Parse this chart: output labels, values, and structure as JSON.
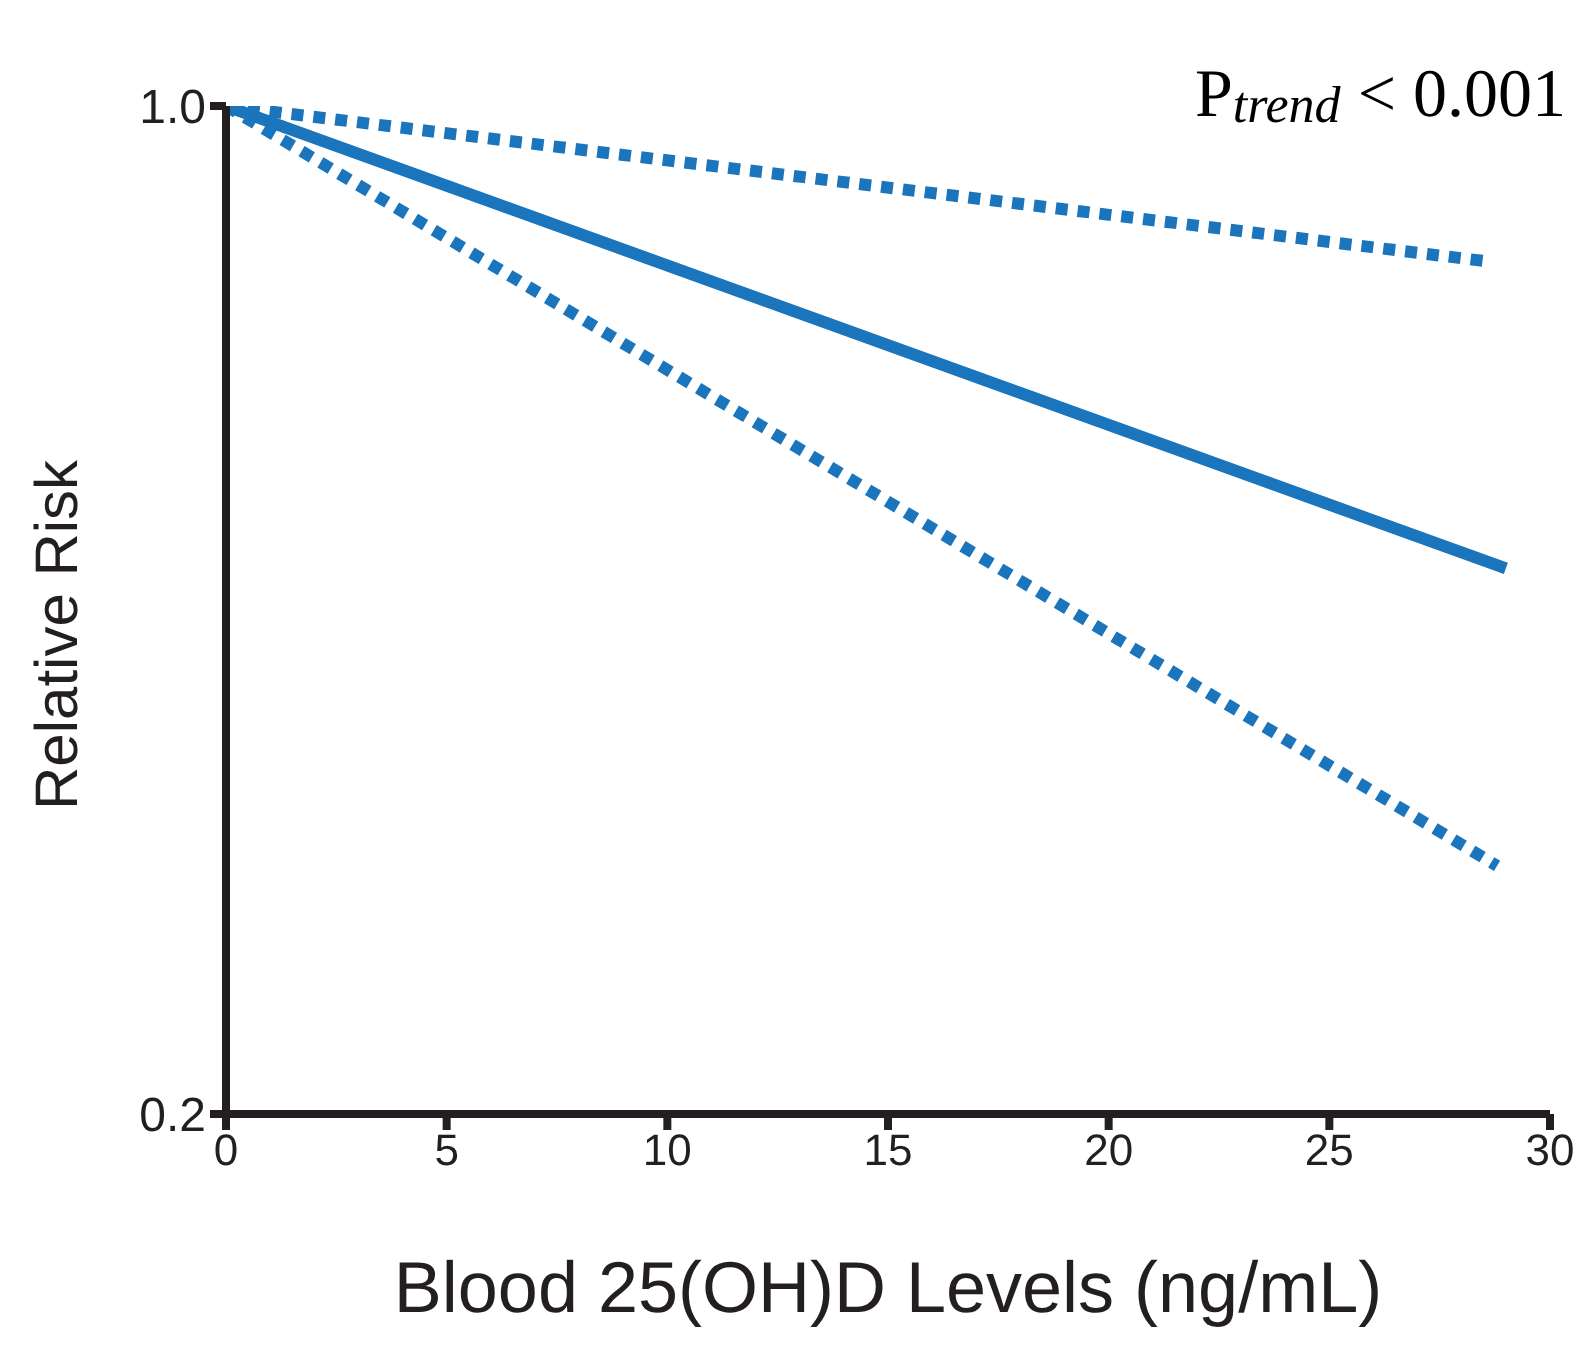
{
  "chart_data": {
    "type": "line",
    "xlabel": "Blood 25(OH)D Levels (ng/mL)",
    "ylabel": "Relative Risk",
    "annotations": [
      "P$_{trend}$ < 0.001"
    ],
    "series": [
      {
        "color": "#1a75bc",
        "x": [
          0,
          28.5
        ],
        "values": [
          1,
          0.877
        ],
        "line_style": "dotted"
      },
      {
        "color": "#1a75bc",
        "x": [
          0,
          29
        ],
        "values": [
          1,
          0.633
        ],
        "line_style": "solid"
      },
      {
        "color": "#1a75bc",
        "x": [
          0,
          28.8
        ],
        "values": [
          1,
          0.397
        ],
        "line_style": "dotted"
      }
    ],
    "xlim": [
      0,
      30
    ],
    "xticks": [
      0,
      5,
      10,
      15,
      20,
      25,
      30
    ],
    "ylim": [
      0.2,
      1
    ],
    "yticks": [
      {
        "value": 0.2,
        "label": "0.2"
      },
      {
        "value": 1,
        "label": "1.0"
      }
    ],
    "grid": false,
    "marker": "none"
  }
}
